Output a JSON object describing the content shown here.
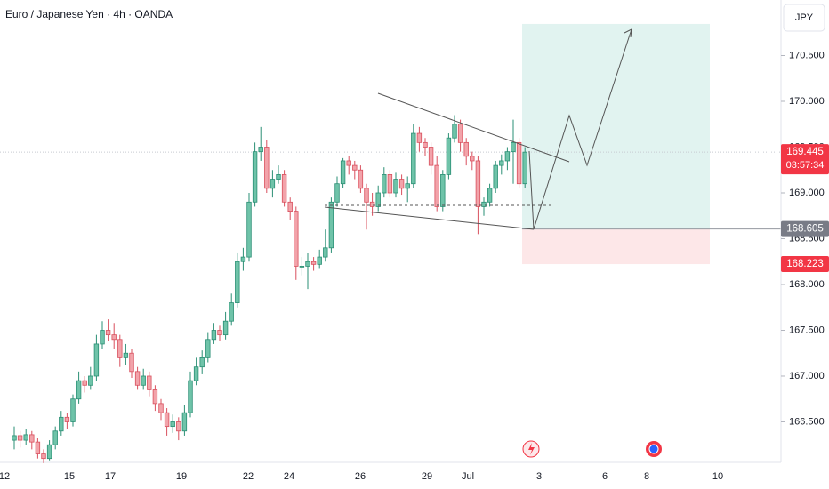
{
  "chart_data": {
    "type": "candlestick",
    "title": "Euro / Japanese Yen · 4h · OANDA",
    "currency": "JPY",
    "ylim": [
      166.058,
      171.107
    ],
    "yticks": [
      {
        "value": 170.5,
        "label": "170.500"
      },
      {
        "value": 170,
        "label": "170.000"
      },
      {
        "value": 169.5,
        "label": "169.500"
      },
      {
        "value": 169,
        "label": "169.000"
      },
      {
        "value": 168.5,
        "label": "168.500"
      },
      {
        "value": 168,
        "label": "168.000"
      },
      {
        "value": 167.5,
        "label": "167.500"
      },
      {
        "value": 167,
        "label": "167.000"
      },
      {
        "value": 166.5,
        "label": "166.500"
      }
    ],
    "x_labels": [
      "12",
      "15",
      "17",
      "19",
      "22",
      "24",
      "26",
      "29",
      "Jul",
      "3",
      "6",
      "8",
      "10"
    ],
    "up_color": "#6fc3a9",
    "down_color": "#f2a3aa",
    "ohlc": [
      [
        166.3,
        166.45,
        166.2,
        166.35
      ],
      [
        166.35,
        166.4,
        166.22,
        166.3
      ],
      [
        166.3,
        166.42,
        166.25,
        166.36
      ],
      [
        166.36,
        166.4,
        166.2,
        166.28
      ],
      [
        166.28,
        166.32,
        166.1,
        166.15
      ],
      [
        166.15,
        166.2,
        166.05,
        166.1
      ],
      [
        166.1,
        166.3,
        166.08,
        166.25
      ],
      [
        166.25,
        166.45,
        166.2,
        166.4
      ],
      [
        166.4,
        166.62,
        166.35,
        166.55
      ],
      [
        166.55,
        166.6,
        166.42,
        166.5
      ],
      [
        166.5,
        166.8,
        166.45,
        166.75
      ],
      [
        166.75,
        167.05,
        166.7,
        166.95
      ],
      [
        166.95,
        167.0,
        166.82,
        166.9
      ],
      [
        166.9,
        167.1,
        166.85,
        167.0
      ],
      [
        167.0,
        167.45,
        166.95,
        167.35
      ],
      [
        167.35,
        167.6,
        167.3,
        167.5
      ],
      [
        167.5,
        167.62,
        167.38,
        167.45
      ],
      [
        167.45,
        167.58,
        167.3,
        167.4
      ],
      [
        167.4,
        167.45,
        167.1,
        167.2
      ],
      [
        167.2,
        167.35,
        167.12,
        167.25
      ],
      [
        167.25,
        167.3,
        166.98,
        167.05
      ],
      [
        167.05,
        167.1,
        166.85,
        166.9
      ],
      [
        166.9,
        167.08,
        166.85,
        167.0
      ],
      [
        167.0,
        167.05,
        166.78,
        166.85
      ],
      [
        166.85,
        166.9,
        166.62,
        166.7
      ],
      [
        166.7,
        166.75,
        166.52,
        166.6
      ],
      [
        166.6,
        166.65,
        166.35,
        166.45
      ],
      [
        166.45,
        166.58,
        166.38,
        166.5
      ],
      [
        166.5,
        166.55,
        166.3,
        166.4
      ],
      [
        166.4,
        166.68,
        166.35,
        166.6
      ],
      [
        166.6,
        167.05,
        166.55,
        166.95
      ],
      [
        166.95,
        167.2,
        166.9,
        167.1
      ],
      [
        167.1,
        167.28,
        167.02,
        167.2
      ],
      [
        167.2,
        167.48,
        167.15,
        167.4
      ],
      [
        167.4,
        167.58,
        167.35,
        167.5
      ],
      [
        167.5,
        167.55,
        167.38,
        167.45
      ],
      [
        167.45,
        167.7,
        167.4,
        167.6
      ],
      [
        167.6,
        167.9,
        167.55,
        167.8
      ],
      [
        167.8,
        168.35,
        167.75,
        168.25
      ],
      [
        168.25,
        168.4,
        168.15,
        168.3
      ],
      [
        168.3,
        169.0,
        168.25,
        168.9
      ],
      [
        168.9,
        169.55,
        168.85,
        169.45
      ],
      [
        169.45,
        169.72,
        169.35,
        169.5
      ],
      [
        169.5,
        169.58,
        169.0,
        169.05
      ],
      [
        169.05,
        169.25,
        168.95,
        169.15
      ],
      [
        169.15,
        169.3,
        169.1,
        169.2
      ],
      [
        169.2,
        169.25,
        168.85,
        168.9
      ],
      [
        168.9,
        168.95,
        168.7,
        168.8
      ],
      [
        168.8,
        168.85,
        168.05,
        168.2
      ],
      [
        168.2,
        168.3,
        168.1,
        168.2
      ],
      [
        168.2,
        168.35,
        167.95,
        168.25
      ],
      [
        168.25,
        168.3,
        168.15,
        168.22
      ],
      [
        168.22,
        168.38,
        168.18,
        168.3
      ],
      [
        168.3,
        168.6,
        168.25,
        168.4
      ],
      [
        168.4,
        168.95,
        168.35,
        168.9
      ],
      [
        168.9,
        169.18,
        168.85,
        169.1
      ],
      [
        169.1,
        169.38,
        169.05,
        169.35
      ],
      [
        169.35,
        169.4,
        169.2,
        169.3
      ],
      [
        169.3,
        169.35,
        169.15,
        169.25
      ],
      [
        169.25,
        169.3,
        169.0,
        169.05
      ],
      [
        169.05,
        169.1,
        168.6,
        168.9
      ],
      [
        168.9,
        169.0,
        168.75,
        168.85
      ],
      [
        168.85,
        169.08,
        168.8,
        169.0
      ],
      [
        169.0,
        169.28,
        168.95,
        169.2
      ],
      [
        169.2,
        169.25,
        168.95,
        169.0
      ],
      [
        169.0,
        169.22,
        168.95,
        169.15
      ],
      [
        169.15,
        169.2,
        168.98,
        169.05
      ],
      [
        169.05,
        169.18,
        168.9,
        169.1
      ],
      [
        169.1,
        169.75,
        169.05,
        169.65
      ],
      [
        169.65,
        169.72,
        169.45,
        169.55
      ],
      [
        169.55,
        169.6,
        169.4,
        169.5
      ],
      [
        169.5,
        169.55,
        169.2,
        169.3
      ],
      [
        169.3,
        169.4,
        168.8,
        168.85
      ],
      [
        168.85,
        169.25,
        168.8,
        169.2
      ],
      [
        169.2,
        169.65,
        169.15,
        169.6
      ],
      [
        169.6,
        169.85,
        169.55,
        169.75
      ],
      [
        169.75,
        169.8,
        169.45,
        169.55
      ],
      [
        169.55,
        169.6,
        169.3,
        169.4
      ],
      [
        169.4,
        169.45,
        169.25,
        169.35
      ],
      [
        169.35,
        169.4,
        168.55,
        168.85
      ],
      [
        168.85,
        168.95,
        168.75,
        168.9
      ],
      [
        168.9,
        169.1,
        168.85,
        169.05
      ],
      [
        169.05,
        169.35,
        169.0,
        169.3
      ],
      [
        169.3,
        169.42,
        169.2,
        169.35
      ],
      [
        169.35,
        169.5,
        169.25,
        169.45
      ],
      [
        169.45,
        169.8,
        169.1,
        169.55
      ],
      [
        169.55,
        169.6,
        169.05,
        169.1
      ],
      [
        169.1,
        169.5,
        169.05,
        169.445
      ]
    ],
    "position": {
      "target": 170.845,
      "entry": 168.605,
      "stop": 168.223
    },
    "price_tags": [
      {
        "value": 169.445,
        "sub": "03:57:34",
        "color": "#f23645"
      },
      {
        "value": 168.605,
        "color": "#787b86"
      },
      {
        "value": 168.223,
        "color": "#f23645"
      }
    ]
  }
}
